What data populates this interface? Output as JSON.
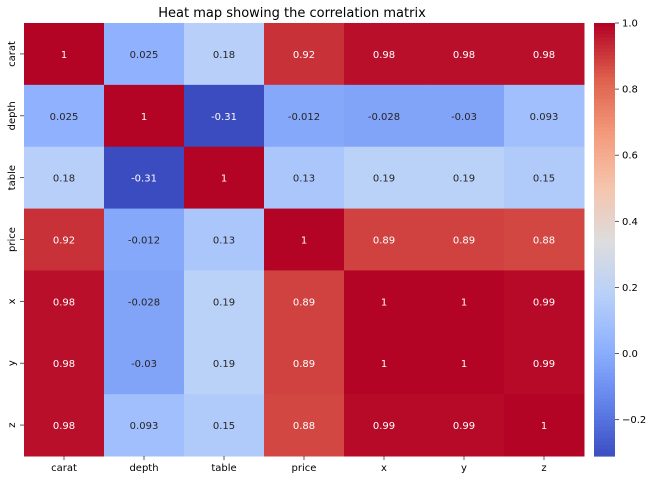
{
  "chart_data": {
    "type": "heatmap",
    "title": "Heat map showing the correlation matrix",
    "row_labels": [
      "carat",
      "depth",
      "table",
      "price",
      "x",
      "y",
      "z"
    ],
    "col_labels": [
      "carat",
      "depth",
      "table",
      "price",
      "x",
      "y",
      "z"
    ],
    "values": [
      [
        1,
        0.025,
        0.18,
        0.92,
        0.98,
        0.98,
        0.98
      ],
      [
        0.025,
        1,
        -0.31,
        -0.012,
        -0.028,
        -0.03,
        0.093
      ],
      [
        0.18,
        -0.31,
        1,
        0.13,
        0.19,
        0.19,
        0.15
      ],
      [
        0.92,
        -0.012,
        0.13,
        1,
        0.89,
        0.89,
        0.88
      ],
      [
        0.98,
        -0.028,
        0.19,
        0.89,
        1,
        1,
        0.99
      ],
      [
        0.98,
        -0.03,
        0.19,
        0.89,
        1,
        1,
        0.99
      ],
      [
        0.98,
        0.093,
        0.15,
        0.88,
        0.99,
        0.99,
        1
      ]
    ],
    "colormap": "coolwarm",
    "vmin": -0.31,
    "vmax": 1.0,
    "colorbar_ticks": [
      -0.2,
      0.0,
      0.2,
      0.4,
      0.6,
      0.8,
      1.0
    ],
    "colorbar_tick_labels": [
      "−0.2",
      "0.0",
      "0.2",
      "0.4",
      "0.6",
      "0.8",
      "1.0"
    ],
    "annotations": true,
    "xlabel": "",
    "ylabel": "",
    "grid": false
  }
}
